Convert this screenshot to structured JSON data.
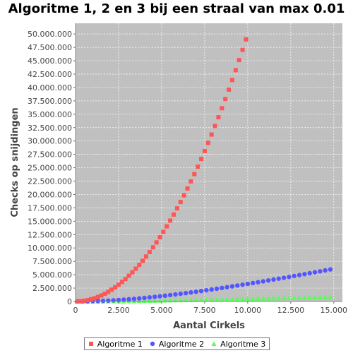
{
  "chart_data": {
    "type": "scatter",
    "title": "Algoritme 1, 2 en 3 bij een straal van max 0.01",
    "xlabel": "Aantal Cirkels",
    "ylabel": "Checks op snijdingen",
    "xlim": [
      0,
      15500
    ],
    "ylim": [
      0,
      52000000
    ],
    "x_ticks": [
      0,
      2500,
      5000,
      7500,
      10000,
      12500,
      15000
    ],
    "x_tick_labels": [
      "0",
      "2.500",
      "5.000",
      "7.500",
      "10.000",
      "12.500",
      "15.000"
    ],
    "y_ticks": [
      0,
      2500000,
      5000000,
      7500000,
      10000000,
      12500000,
      15000000,
      17500000,
      20000000,
      22500000,
      25000000,
      27500000,
      30000000,
      32500000,
      35000000,
      37500000,
      40000000,
      42500000,
      45000000,
      47500000,
      50000000
    ],
    "y_tick_labels": [
      "0",
      "2.500.000",
      "5.000.000",
      "7.500.000",
      "10.000.000",
      "12.500.000",
      "15.000.000",
      "17.500.000",
      "20.000.000",
      "22.500.000",
      "25.000.000",
      "27.500.000",
      "30.000.000",
      "32.500.000",
      "35.000.000",
      "37.500.000",
      "40.000.000",
      "42.500.000",
      "45.000.000",
      "47.500.000",
      "50.000.000"
    ],
    "grid": true,
    "legend_position": "bottom",
    "series": [
      {
        "name": "Algoritme 1",
        "marker": "square",
        "color": "#ff5555",
        "x": [
          100,
          300,
          500,
          700,
          900,
          1100,
          1300,
          1500,
          1700,
          1900,
          2100,
          2300,
          2500,
          2700,
          2900,
          3100,
          3300,
          3500,
          3700,
          3900,
          4100,
          4300,
          4500,
          4700,
          4900,
          5100,
          5300,
          5500,
          5700,
          5900,
          6100,
          6300,
          6500,
          6700,
          6900,
          7100,
          7300,
          7500,
          7700,
          7900,
          8100,
          8300,
          8500,
          8700,
          8900,
          9100,
          9300,
          9500,
          9700,
          9900
        ],
        "y": [
          4950,
          44850,
          124750,
          244650,
          404550,
          604450,
          844350,
          1124250,
          1444150,
          1804050,
          2203950,
          2643850,
          3123750,
          3643650,
          4203550,
          4803450,
          5443350,
          6123250,
          6843150,
          7603050,
          8402950,
          9242850,
          10122750,
          11042650,
          12002550,
          13002450,
          14042350,
          15122250,
          16242150,
          17402050,
          18601950,
          19841850,
          21121750,
          22441650,
          23801550,
          25201450,
          26641350,
          28121250,
          29641150,
          31201050,
          32800950,
          34440850,
          36120750,
          37840650,
          39600550,
          41400450,
          43240350,
          45120250,
          47040150,
          49000050
        ]
      },
      {
        "name": "Algoritme 2",
        "marker": "circle",
        "color": "#5555ff",
        "x": [
          100,
          400,
          700,
          1000,
          1300,
          1600,
          1900,
          2200,
          2500,
          2800,
          3100,
          3400,
          3700,
          4000,
          4300,
          4600,
          4900,
          5200,
          5500,
          5800,
          6100,
          6400,
          6700,
          7000,
          7300,
          7600,
          7900,
          8200,
          8500,
          8800,
          9100,
          9400,
          9700,
          10000,
          10300,
          10600,
          10900,
          11200,
          11500,
          11800,
          12100,
          12400,
          12700,
          13000,
          13300,
          13600,
          13900,
          14200,
          14500,
          14800
        ],
        "y": [
          500,
          7000,
          21000,
          44000,
          75000,
          113000,
          159000,
          212000,
          273000,
          340000,
          414000,
          493000,
          578000,
          668000,
          764000,
          865000,
          970000,
          1080000,
          1195000,
          1313000,
          1435000,
          1560000,
          1688000,
          1820000,
          1955000,
          2093000,
          2234000,
          2377000,
          2523000,
          2671000,
          2821000,
          2973000,
          3128000,
          3284000,
          3442000,
          3602000,
          3764000,
          3927000,
          4092000,
          4258000,
          4426000,
          4595000,
          4765000,
          4937000,
          5110000,
          5284000,
          5459000,
          5635000,
          5812000,
          5990000
        ]
      },
      {
        "name": "Algoritme 3",
        "marker": "triangle",
        "color": "#55ff55",
        "x": [
          100,
          400,
          700,
          1000,
          1300,
          1600,
          1900,
          2200,
          2500,
          2800,
          3100,
          3400,
          3700,
          4000,
          4300,
          4600,
          4900,
          5200,
          5500,
          5800,
          6100,
          6400,
          6700,
          7000,
          7300,
          7600,
          7900,
          8200,
          8500,
          8800,
          9100,
          9400,
          9700,
          10000,
          10300,
          10600,
          10900,
          11200,
          11500,
          11800,
          12100,
          12400,
          12700,
          13000,
          13300,
          13600,
          13900,
          14200,
          14500,
          14800
        ],
        "y": [
          100,
          1500,
          4500,
          9300,
          15700,
          23600,
          32800,
          43300,
          54800,
          67300,
          80600,
          94600,
          109300,
          124600,
          140400,
          156700,
          173400,
          190500,
          207900,
          225700,
          243700,
          262000,
          280600,
          299400,
          318400,
          337600,
          357000,
          376600,
          396300,
          416200,
          436200,
          456400,
          476700,
          497100,
          517600,
          538200,
          558900,
          579700,
          600600,
          621600,
          642700,
          663800,
          685000,
          706300,
          727700,
          749100,
          770600,
          792200,
          813800,
          835500
        ]
      }
    ]
  }
}
